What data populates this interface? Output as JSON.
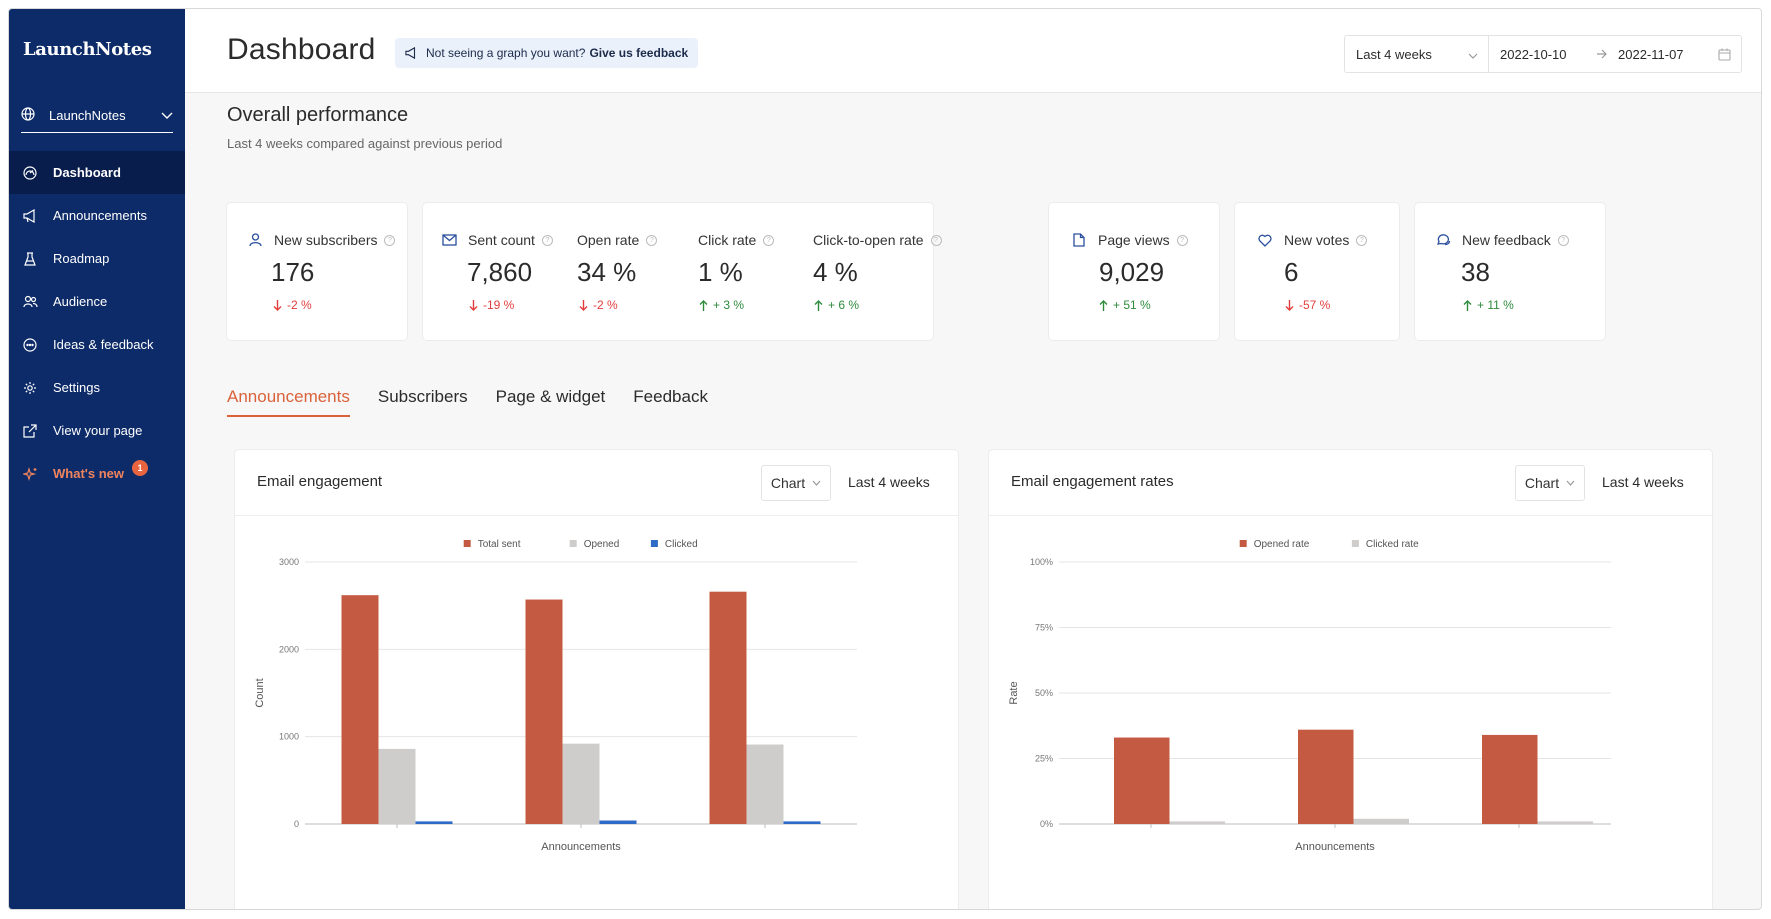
{
  "sidebar": {
    "brand": "LaunchNotes",
    "workspace": "LaunchNotes",
    "items": [
      {
        "label": "Dashboard",
        "icon": "gauge-icon",
        "active": true
      },
      {
        "label": "Announcements",
        "icon": "megaphone-icon"
      },
      {
        "label": "Roadmap",
        "icon": "flask-icon"
      },
      {
        "label": "Audience",
        "icon": "users-icon"
      },
      {
        "label": "Ideas & feedback",
        "icon": "chat-bubble-icon"
      },
      {
        "label": "Settings",
        "icon": "gear-icon"
      },
      {
        "label": "View your page",
        "icon": "external-link-icon"
      },
      {
        "label": "What's new",
        "icon": "sparkle-icon",
        "badge": "1"
      }
    ]
  },
  "header": {
    "title": "Dashboard",
    "feedback_prompt": "Not seeing a graph you want?",
    "feedback_link": "Give us feedback",
    "range_select": "Last 4 weeks",
    "start_date": "2022-10-10",
    "end_date": "2022-11-07"
  },
  "overview": {
    "title": "Overall performance",
    "subtitle": "Last 4 weeks compared against previous period"
  },
  "metrics": [
    {
      "label": "New subscribers",
      "value": "176",
      "delta": "-2 %",
      "trend": "down",
      "icon": "user-icon"
    },
    {
      "label": "Sent count",
      "value": "7,860",
      "delta": "-19 %",
      "trend": "down",
      "icon": "envelope-icon"
    },
    {
      "label": "Open rate",
      "value": "34 %",
      "delta": "-2 %",
      "trend": "down"
    },
    {
      "label": "Click rate",
      "value": "1 %",
      "delta": "+ 3 %",
      "trend": "up"
    },
    {
      "label": "Click-to-open rate",
      "value": "4 %",
      "delta": "+ 6 %",
      "trend": "up"
    },
    {
      "label": "Page views",
      "value": "9,029",
      "delta": "+ 51 %",
      "trend": "up",
      "icon": "document-icon"
    },
    {
      "label": "New votes",
      "value": "6",
      "delta": "-57 %",
      "trend": "down",
      "icon": "heart-icon"
    },
    {
      "label": "New feedback",
      "value": "38",
      "delta": "+ 11 %",
      "trend": "up",
      "icon": "chat-bubble-icon"
    }
  ],
  "tabs": [
    "Announcements",
    "Subscribers",
    "Page & widget",
    "Feedback"
  ],
  "active_tab": "Announcements",
  "colors": {
    "sidebar": "#0d2b68",
    "accent": "#d9623a",
    "bar_primary": "#c45a42",
    "bar_secondary": "#cfcdcc",
    "bar_tertiary": "#2e6bc7"
  },
  "panels": {
    "left": {
      "title": "Email engagement",
      "view_select": "Chart",
      "range": "Last 4 weeks"
    },
    "right": {
      "title": "Email engagement rates",
      "view_select": "Chart",
      "range": "Last 4 weeks"
    }
  },
  "chart_data": [
    {
      "type": "bar",
      "title": "Email engagement",
      "xlabel": "Announcements",
      "ylabel": "Count",
      "ylim": [
        0,
        3000
      ],
      "yticks": [
        "0",
        "1000",
        "2000",
        "3000"
      ],
      "grid": true,
      "legend": "top",
      "categories": [
        "",
        "",
        ""
      ],
      "series": [
        {
          "name": "Total sent",
          "values": [
            2620,
            2570,
            2660
          ]
        },
        {
          "name": "Opened",
          "values": [
            860,
            920,
            910
          ]
        },
        {
          "name": "Clicked",
          "values": [
            30,
            40,
            30
          ]
        }
      ]
    },
    {
      "type": "bar",
      "title": "Email engagement rates",
      "xlabel": "Announcements",
      "ylabel": "Rate",
      "ylim": [
        0,
        100
      ],
      "yticks": [
        "0%",
        "25%",
        "50%",
        "75%",
        "100%"
      ],
      "grid": true,
      "legend": "top",
      "categories": [
        "",
        "",
        ""
      ],
      "series": [
        {
          "name": "Opened rate",
          "values": [
            33,
            36,
            34
          ]
        },
        {
          "name": "Clicked rate",
          "values": [
            1,
            2,
            1
          ]
        }
      ]
    }
  ]
}
